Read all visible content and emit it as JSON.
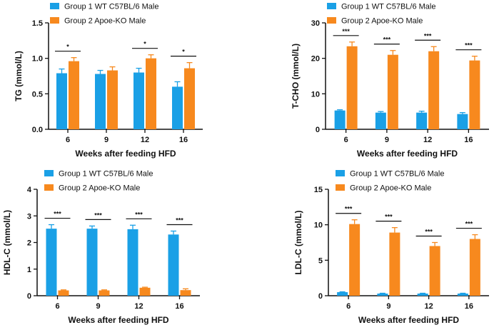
{
  "colors": {
    "group1": "#1aa0e6",
    "group2": "#f7891e",
    "axis": "#111111"
  },
  "chart_data": [
    {
      "type": "bar",
      "categories": [
        "6",
        "9",
        "12",
        "16"
      ],
      "xlabel": "Weeks after feeding HFD",
      "ylabel": "TG (mmol/L)",
      "ylim": [
        0,
        1.5
      ],
      "yticks": [
        "0.0",
        "0.5",
        "1.0",
        "1.5"
      ],
      "legend": "top-left",
      "series": [
        {
          "name": "Group 1 WT C57BL/6 Male",
          "values": [
            0.79,
            0.78,
            0.8,
            0.6
          ],
          "errors": [
            0.06,
            0.05,
            0.06,
            0.07
          ]
        },
        {
          "name": "Group 2 Apoe-KO Male",
          "values": [
            0.96,
            0.83,
            1.0,
            0.86
          ],
          "errors": [
            0.05,
            0.05,
            0.05,
            0.08
          ]
        }
      ],
      "significance": [
        "*",
        "",
        "*",
        "*"
      ]
    },
    {
      "type": "bar",
      "categories": [
        "6",
        "9",
        "12",
        "16"
      ],
      "xlabel": "Weeks after feeding HFD",
      "ylabel": "T-CHO (mmol/L)",
      "ylim": [
        0,
        30
      ],
      "yticks": [
        "0",
        "10",
        "20",
        "30"
      ],
      "legend": "top-left",
      "series": [
        {
          "name": "Group 1 WT C57BL/6 Male",
          "values": [
            5.3,
            4.7,
            4.7,
            4.3
          ],
          "errors": [
            0.2,
            0.3,
            0.4,
            0.4
          ]
        },
        {
          "name": "Group 2 Apoe-KO Male",
          "values": [
            23.4,
            21.0,
            22.0,
            19.4
          ],
          "errors": [
            1.2,
            1.2,
            1.3,
            1.2
          ]
        }
      ],
      "significance": [
        "***",
        "***",
        "***",
        "***"
      ]
    },
    {
      "type": "bar",
      "categories": [
        "6",
        "9",
        "12",
        "16"
      ],
      "xlabel": "Weeks after feeding HFD",
      "ylabel": "HDL-C (mmol/L)",
      "ylim": [
        0,
        4
      ],
      "yticks": [
        "0",
        "1",
        "2",
        "3",
        "4"
      ],
      "legend": "top-left",
      "series": [
        {
          "name": "Group 1 WT C57BL/6 Male",
          "values": [
            2.52,
            2.52,
            2.5,
            2.3
          ],
          "errors": [
            0.15,
            0.1,
            0.15,
            0.13
          ]
        },
        {
          "name": "Group 2 Apoe-KO Male",
          "values": [
            0.2,
            0.2,
            0.3,
            0.21
          ],
          "errors": [
            0.02,
            0.02,
            0.02,
            0.05
          ]
        }
      ],
      "significance": [
        "***",
        "***",
        "***",
        "***"
      ]
    },
    {
      "type": "bar",
      "categories": [
        "6",
        "9",
        "12",
        "16"
      ],
      "xlabel": "Weeks after feeding HFD",
      "ylabel": "LDL-C (mmol/L)",
      "ylim": [
        0,
        15
      ],
      "yticks": [
        "0",
        "5",
        "10",
        "15"
      ],
      "legend": "top-left",
      "series": [
        {
          "name": "Group 1 WT C57BL/6 Male",
          "values": [
            0.5,
            0.3,
            0.3,
            0.3
          ],
          "errors": [
            0.05,
            0.05,
            0.05,
            0.05
          ]
        },
        {
          "name": "Group 2 Apoe-KO Male",
          "values": [
            10.1,
            8.9,
            7.0,
            8.0
          ],
          "errors": [
            0.6,
            0.7,
            0.5,
            0.6
          ]
        }
      ],
      "significance": [
        "***",
        "***",
        "***",
        "***"
      ]
    }
  ]
}
